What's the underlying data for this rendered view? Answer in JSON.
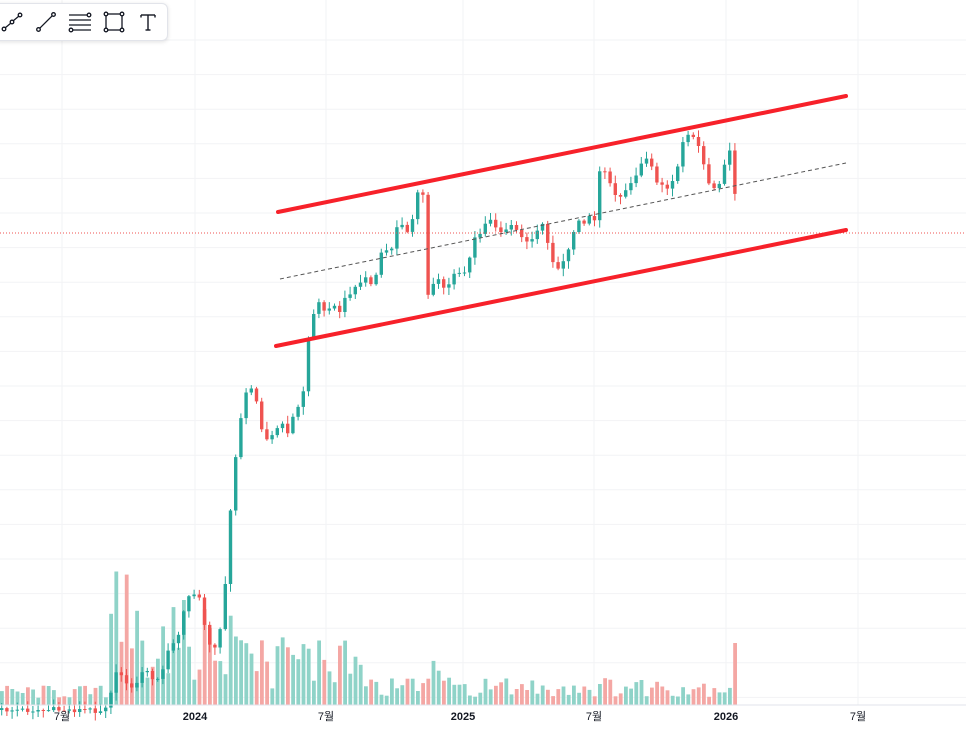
{
  "toolbar": {
    "tools": [
      {
        "name": "trend-polyline-icon"
      },
      {
        "name": "trend-line-icon"
      },
      {
        "name": "fib-channel-icon"
      },
      {
        "name": "rectangle-icon"
      },
      {
        "name": "text-tool-icon"
      }
    ]
  },
  "colors": {
    "up": "#26a69a",
    "down": "#ef5350",
    "up_volume": "#8fd3c8",
    "down_volume": "#f4a7a4",
    "channel": "#f7212a",
    "grid": "#f2f3f5",
    "midline": "#555555"
  },
  "chart_data": {
    "type": "candlestick",
    "x_axis": {
      "tick_labels": [
        "7월",
        "2024",
        "7월",
        "2025",
        "7월",
        "2026",
        "7월"
      ],
      "bold_labels": [
        "2024",
        "2025",
        "2026"
      ]
    },
    "grid": true,
    "channel": {
      "upper": {
        "from": [
          "2024-08",
          "upper-start"
        ],
        "to": [
          "2026-05",
          "upper-end"
        ]
      },
      "lower": true,
      "midline": "dashed"
    },
    "price_line": "dotted",
    "volume": true
  }
}
